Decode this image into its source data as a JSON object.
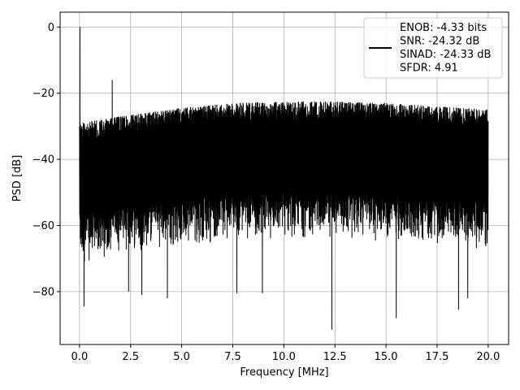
{
  "chart_data": {
    "type": "line",
    "xlabel": "Frequency [MHz]",
    "ylabel": "PSD [dB]",
    "xlim": [
      -0.95,
      21.0
    ],
    "ylim": [
      -96.0,
      4.5
    ],
    "xticks": [
      0.0,
      2.5,
      5.0,
      7.5,
      10.0,
      12.5,
      15.0,
      17.5,
      20.0
    ],
    "xtick_labels": [
      "0.0",
      "2.5",
      "5.0",
      "7.5",
      "10.0",
      "12.5",
      "15.0",
      "17.5",
      "20.0"
    ],
    "yticks": [
      0,
      -20,
      -40,
      -60,
      -80
    ],
    "ytick_labels": [
      "0",
      "−20",
      "−40",
      "−60",
      "−80"
    ],
    "grid": true,
    "legend_position": "top-right",
    "legend_entries": [
      "ENOB: -4.33 bits",
      "SNR: -24.32 dB",
      "SINAD: -24.33 dB",
      "SFDR: 4.91"
    ],
    "series": [
      {
        "color": "#000000",
        "x_range": [
          0.0,
          20.0
        ],
        "peak": {
          "x": 0.02,
          "y": 0.0
        },
        "spur": {
          "x": 1.6,
          "y": -16.0
        },
        "upper_envelope": [
          [
            0.0,
            -29
          ],
          [
            2.5,
            -26.5
          ],
          [
            5.0,
            -24.5
          ],
          [
            7.5,
            -23
          ],
          [
            10.0,
            -22.5
          ],
          [
            12.5,
            -22.5
          ],
          [
            15.0,
            -23
          ],
          [
            17.5,
            -24
          ],
          [
            20.0,
            -25
          ]
        ],
        "lower_envelope": [
          [
            0.0,
            -72
          ],
          [
            2.5,
            -68
          ],
          [
            5.0,
            -66
          ],
          [
            7.5,
            -65
          ],
          [
            10.0,
            -64
          ],
          [
            12.5,
            -64
          ],
          [
            15.0,
            -65
          ],
          [
            17.5,
            -66
          ],
          [
            20.0,
            -68
          ]
        ],
        "deep_nulls": [
          [
            0.22,
            -84.5
          ],
          [
            2.4,
            -80
          ],
          [
            3.05,
            -81
          ],
          [
            4.3,
            -82
          ],
          [
            7.7,
            -80.5
          ],
          [
            8.95,
            -80.5
          ],
          [
            12.35,
            -91.5
          ],
          [
            15.5,
            -88
          ],
          [
            18.55,
            -85.5
          ],
          [
            19.0,
            -82
          ]
        ]
      }
    ]
  }
}
